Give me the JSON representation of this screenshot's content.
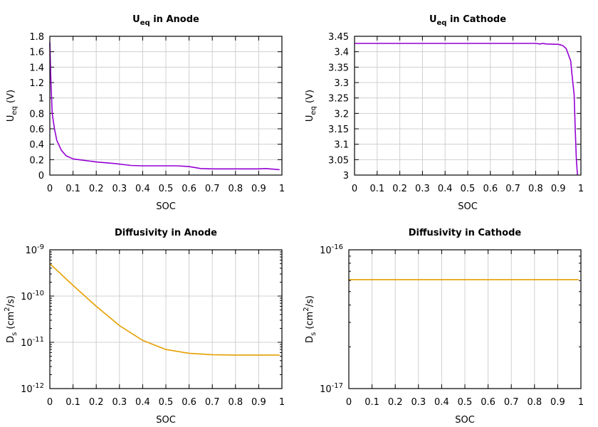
{
  "chart_data": [
    {
      "type": "line",
      "title": {
        "main": "U",
        "sub": "eq",
        "rest": " in Anode"
      },
      "xlabel": "SOC",
      "ylabel": {
        "main": "U",
        "sub": "eq",
        "rest": " (V)"
      },
      "xlim": [
        0,
        1
      ],
      "ylim": [
        0,
        1.8
      ],
      "yscale": "linear",
      "grid": true,
      "xticks": [
        "0",
        "0.1",
        "0.2",
        "0.3",
        "0.4",
        "0.5",
        "0.6",
        "0.7",
        "0.8",
        "0.9",
        "1"
      ],
      "yticks": [
        "0",
        "0.2",
        "0.4",
        "0.6",
        "0.8",
        "1",
        "1.2",
        "1.4",
        "1.6",
        "1.8"
      ],
      "color": "#9400d3",
      "x": [
        0,
        0.005,
        0.01,
        0.02,
        0.03,
        0.05,
        0.07,
        0.1,
        0.15,
        0.2,
        0.28,
        0.35,
        0.4,
        0.55,
        0.6,
        0.65,
        0.7,
        0.9,
        0.93,
        0.99
      ],
      "y": [
        1.72,
        1.2,
        0.8,
        0.6,
        0.45,
        0.32,
        0.25,
        0.21,
        0.19,
        0.17,
        0.15,
        0.125,
        0.12,
        0.12,
        0.11,
        0.085,
        0.08,
        0.08,
        0.085,
        0.07
      ]
    },
    {
      "type": "line",
      "title": {
        "main": "U",
        "sub": "eq",
        "rest": " in Cathode"
      },
      "xlabel": "SOC",
      "ylabel": {
        "main": "U",
        "sub": "eq",
        "rest": " (V)"
      },
      "xlim": [
        0,
        1
      ],
      "ylim": [
        3,
        3.45
      ],
      "yscale": "linear",
      "grid": true,
      "xticks": [
        "0",
        "0.1",
        "0.2",
        "0.3",
        "0.4",
        "0.5",
        "0.6",
        "0.7",
        "0.8",
        "0.9",
        "1"
      ],
      "yticks": [
        "3",
        "3.05",
        "3.1",
        "3.15",
        "3.2",
        "3.25",
        "3.3",
        "3.35",
        "3.4",
        "3.45"
      ],
      "color": "#9400d3",
      "x": [
        0,
        0.8,
        0.82,
        0.83,
        0.85,
        0.9,
        0.92,
        0.935,
        0.945,
        0.955,
        0.96,
        0.97,
        0.975,
        0.98,
        0.985
      ],
      "y": [
        3.427,
        3.427,
        3.425,
        3.427,
        3.425,
        3.424,
        3.42,
        3.41,
        3.39,
        3.37,
        3.33,
        3.26,
        3.15,
        3.05,
        3.0
      ]
    },
    {
      "type": "line",
      "title": {
        "main": "Diffusivity in Anode",
        "sub": "",
        "rest": ""
      },
      "xlabel": "SOC",
      "ylabel": {
        "main": "D",
        "sub": "s",
        "rest": " (cm",
        "sup": "2",
        "rest2": "/s)"
      },
      "xlim": [
        0,
        1
      ],
      "ylim": [
        1e-12,
        1e-09
      ],
      "yscale": "log",
      "grid": true,
      "xticks": [
        "0",
        "0.1",
        "0.2",
        "0.3",
        "0.4",
        "0.5",
        "0.6",
        "0.7",
        "0.8",
        "0.9",
        "1"
      ],
      "yticks": [
        {
          "base": "10",
          "exp": "-12"
        },
        {
          "base": "10",
          "exp": "-11"
        },
        {
          "base": "10",
          "exp": "-10"
        },
        {
          "base": "10",
          "exp": "-9"
        }
      ],
      "color": "#e69f00",
      "x": [
        0,
        0.1,
        0.2,
        0.3,
        0.4,
        0.5,
        0.6,
        0.7,
        0.8,
        0.99
      ],
      "y": [
        5e-10,
        1.7e-10,
        6e-11,
        2.3e-11,
        1.1e-11,
        7e-12,
        5.8e-12,
        5.4e-12,
        5.3e-12,
        5.3e-12
      ]
    },
    {
      "type": "line",
      "title": {
        "main": "Diffusivity in Cathode",
        "sub": "",
        "rest": ""
      },
      "xlabel": "SOC",
      "ylabel": {
        "main": "D",
        "sub": "s",
        "rest": " (cm",
        "sup": "2",
        "rest2": "/s)"
      },
      "xlim": [
        0,
        1
      ],
      "ylim": [
        1e-17,
        1e-16
      ],
      "yscale": "log",
      "grid": true,
      "xticks": [
        "0",
        "0.1",
        "0.2",
        "0.3",
        "0.4",
        "0.5",
        "0.6",
        "0.7",
        "0.8",
        "0.9",
        "1"
      ],
      "yticks": [
        {
          "base": "10",
          "exp": "-17"
        },
        {
          "base": "10",
          "exp": "-16"
        }
      ],
      "color": "#e69f00",
      "x": [
        0,
        0.99
      ],
      "y": [
        6.1e-17,
        6.1e-17
      ]
    }
  ]
}
